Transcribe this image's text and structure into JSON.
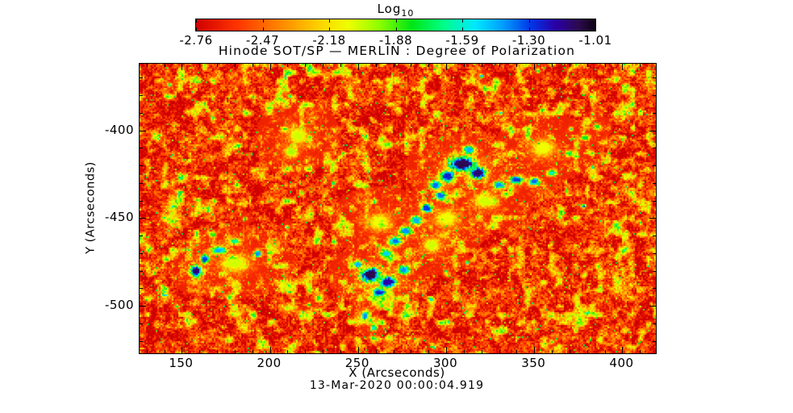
{
  "figure": {
    "title": "Hinode SOT/SP — MERLIN : Degree of Polarization",
    "xlabel": "X (Arcseconds)",
    "ylabel": "Y (Arcseconds)",
    "date_label": "13-Mar-2020 00:00:04.919",
    "colorbar": {
      "title": "Log",
      "title_sub": "10",
      "tick_labels": [
        "-2.76",
        "-2.47",
        "-2.18",
        "-1.88",
        "-1.59",
        "-1.30",
        "-1.01"
      ]
    }
  },
  "colors": {
    "text": "#000000",
    "frame": "#000000",
    "background": "#ffffff"
  },
  "chart_data": {
    "type": "heatmap",
    "title": "Hinode SOT/SP — MERLIN : Degree of Polarization",
    "xlabel": "X (Arcseconds)",
    "ylabel": "Y (Arcseconds)",
    "timestamp": "13-Mar-2020 00:00:04.919",
    "xlim": [
      126,
      419
    ],
    "ylim": [
      -527,
      -362
    ],
    "x_ticks": [
      150,
      200,
      250,
      300,
      350,
      400
    ],
    "x_tick_labels": [
      "150",
      "200",
      "250",
      "300",
      "350",
      "400"
    ],
    "y_ticks": [
      -400,
      -450,
      -500
    ],
    "y_tick_labels": [
      "-400",
      "-450",
      "-500"
    ],
    "minor_tick_step": 10,
    "grid": false,
    "colorbar": {
      "label": "Log10",
      "position": "top",
      "range": [
        -2.76,
        -1.01
      ],
      "ticks": [
        -2.76,
        -2.47,
        -2.18,
        -1.88,
        -1.59,
        -1.3,
        -1.01
      ]
    },
    "colormap_stops": [
      [
        0.0,
        "#cf0000"
      ],
      [
        0.1,
        "#ff3300"
      ],
      [
        0.2,
        "#ff7f00"
      ],
      [
        0.3,
        "#ffcc00"
      ],
      [
        0.38,
        "#f0ff00"
      ],
      [
        0.46,
        "#8cff00"
      ],
      [
        0.54,
        "#00e613"
      ],
      [
        0.62,
        "#00ff87"
      ],
      [
        0.7,
        "#00e8ff"
      ],
      [
        0.77,
        "#009dff"
      ],
      [
        0.84,
        "#0035e6"
      ],
      [
        0.9,
        "#2a00a8"
      ],
      [
        0.96,
        "#2d0a4e"
      ],
      [
        1.0,
        "#0d0212"
      ]
    ],
    "background_level": -2.6,
    "features": [
      [
        309,
        -419,
        9,
        5,
        -1.08
      ],
      [
        318,
        -424,
        6,
        4,
        -1.12
      ],
      [
        301,
        -426,
        5,
        4,
        -1.25
      ],
      [
        294,
        -431,
        4,
        3,
        -1.35
      ],
      [
        313,
        -411,
        4,
        3,
        -1.45
      ],
      [
        330,
        -431,
        4,
        2.5,
        -1.4
      ],
      [
        340,
        -428,
        5,
        2.5,
        -1.3
      ],
      [
        350,
        -429,
        4,
        2.5,
        -1.35
      ],
      [
        360,
        -424,
        3,
        2,
        -1.6
      ],
      [
        370,
        -413,
        3,
        2,
        -1.75
      ],
      [
        379,
        -404,
        3,
        2,
        -1.8
      ],
      [
        386,
        -398,
        2.5,
        2,
        -1.85
      ],
      [
        297,
        -437,
        4,
        3,
        -1.35
      ],
      [
        289,
        -444,
        4,
        3,
        -1.3
      ],
      [
        283,
        -451,
        4,
        3,
        -1.45
      ],
      [
        277,
        -457,
        4,
        3,
        -1.4
      ],
      [
        271,
        -463,
        4,
        3,
        -1.35
      ],
      [
        266,
        -470,
        4,
        3,
        -1.5
      ],
      [
        257,
        -482,
        7,
        5,
        -1.08
      ],
      [
        267,
        -486,
        6,
        4,
        -1.18
      ],
      [
        276,
        -479,
        4,
        3,
        -1.4
      ],
      [
        262,
        -492,
        5,
        3,
        -1.25
      ],
      [
        250,
        -476,
        3,
        2.5,
        -1.45
      ],
      [
        254,
        -505,
        2.5,
        3,
        -1.4
      ],
      [
        259,
        -512,
        2,
        2,
        -1.6
      ],
      [
        158,
        -480,
        4,
        4,
        -1.12
      ],
      [
        163,
        -473,
        3,
        3,
        -1.3
      ],
      [
        171,
        -468,
        5,
        2.5,
        -1.45
      ],
      [
        180,
        -463,
        4,
        2,
        -1.65
      ],
      [
        193,
        -470,
        2.5,
        2,
        -1.4
      ],
      [
        216,
        -403,
        7,
        6,
        -2.05
      ],
      [
        212,
        -412,
        5,
        4,
        -2.0
      ],
      [
        262,
        -452,
        8,
        6,
        -2.1
      ],
      [
        292,
        -465,
        6,
        5,
        -2.05
      ],
      [
        300,
        -450,
        8,
        6,
        -2.1
      ],
      [
        322,
        -440,
        8,
        5,
        -2.05
      ],
      [
        355,
        -410,
        8,
        6,
        -2.1
      ],
      [
        180,
        -475,
        10,
        6,
        -2.05
      ]
    ],
    "spots": [
      [
        143,
        -374,
        -1.6
      ],
      [
        168,
        -393,
        -1.7
      ],
      [
        186,
        -450,
        -1.8
      ],
      [
        210,
        -455,
        -1.6
      ],
      [
        236,
        -430,
        -1.7
      ],
      [
        320,
        -369,
        -1.5
      ],
      [
        331,
        -390,
        -1.55
      ],
      [
        352,
        -366,
        -1.7
      ],
      [
        371,
        -399,
        -1.5
      ],
      [
        378,
        -443,
        -1.25
      ],
      [
        383,
        -421,
        -1.6
      ],
      [
        254,
        -506,
        -1.35
      ],
      [
        293,
        -523,
        -1.6
      ],
      [
        300,
        -480,
        -1.7
      ],
      [
        312,
        -475,
        -1.65
      ],
      [
        222,
        -499,
        -1.8
      ],
      [
        404,
        -390,
        -1.6
      ],
      [
        398,
        -455,
        -1.7
      ],
      [
        147,
        -500,
        -1.75
      ],
      [
        360,
        -520,
        -1.8
      ]
    ]
  }
}
